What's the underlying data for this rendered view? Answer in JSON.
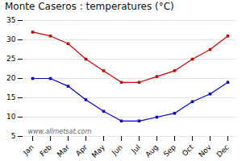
{
  "chart_data": {
    "type": "line",
    "title": "Monte Caseros : temperatures (°C)",
    "categories": [
      "Jan",
      "Feb",
      "Mar",
      "Apr",
      "May",
      "Jun",
      "Jul",
      "Aug",
      "Sep",
      "Oct",
      "Nov",
      "Dec"
    ],
    "series": [
      {
        "color": "#cc0000",
        "marker": "square",
        "values": [
          32,
          31,
          29,
          25,
          22,
          19,
          19,
          20.5,
          22,
          25,
          27.5,
          31
        ]
      },
      {
        "color": "#0000cc",
        "marker": "square",
        "values": [
          20,
          20,
          18,
          14.5,
          11.5,
          9,
          9,
          10,
          11,
          14,
          16,
          19
        ]
      }
    ],
    "ylim": [
      5,
      35
    ],
    "yticks": [
      5,
      10,
      15,
      20,
      25,
      30,
      35
    ],
    "grid": true,
    "annotation": "www.allmetsat.com"
  }
}
